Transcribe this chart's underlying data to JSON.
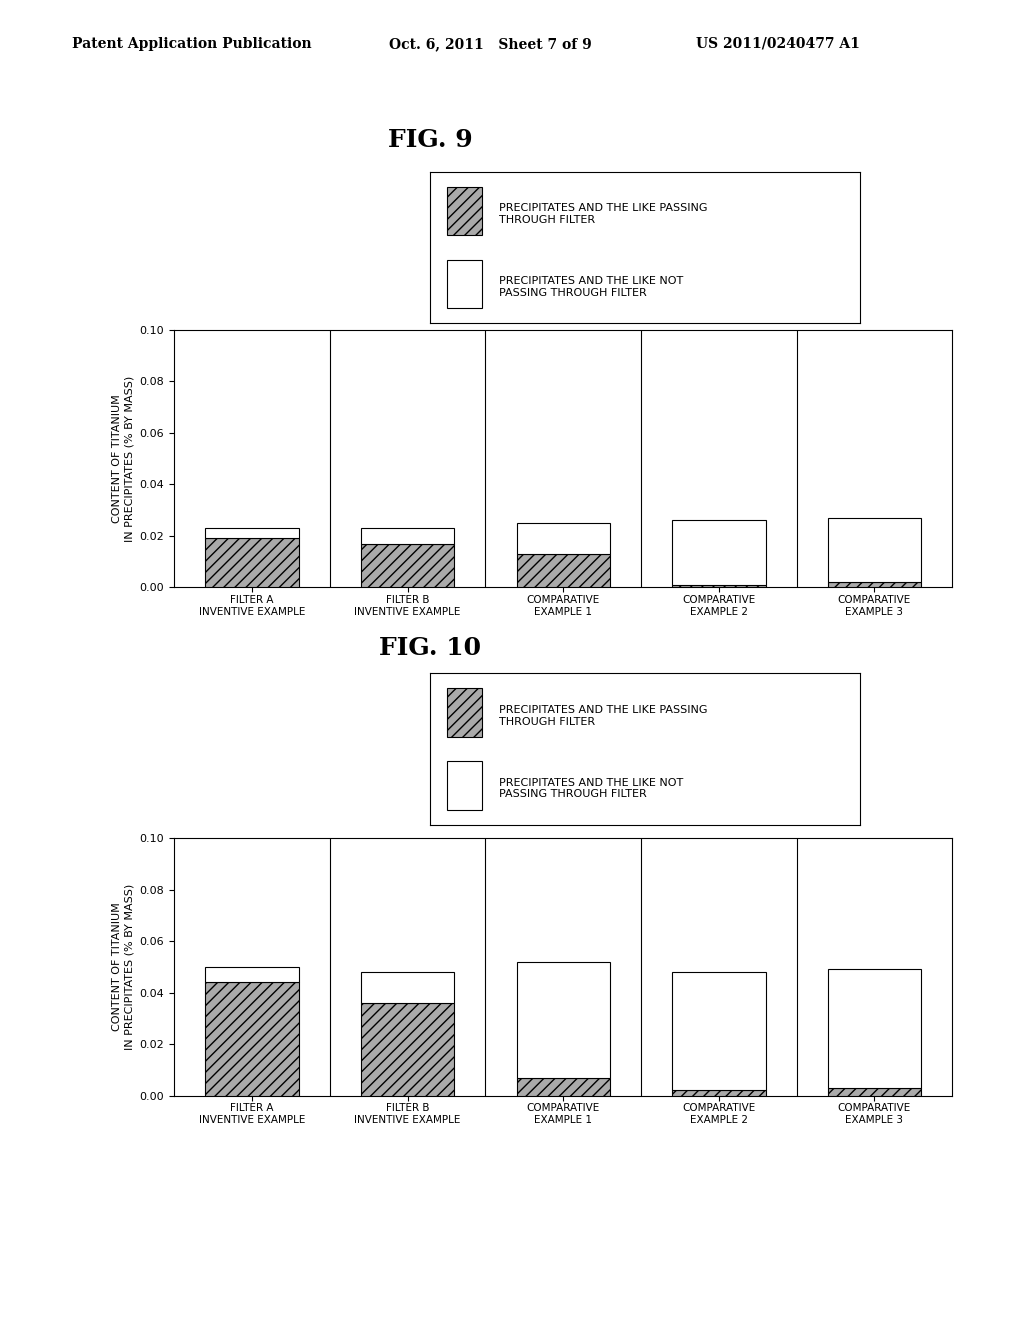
{
  "header_left": "Patent Application Publication",
  "header_mid": "Oct. 6, 2011   Sheet 7 of 9",
  "header_right": "US 2011/0240477 A1",
  "fig9_title": "FIG. 9",
  "fig10_title": "FIG. 10",
  "categories_line1": [
    "FILTER A",
    "FILTER B",
    "COMPARATIVE",
    "COMPARATIVE",
    "COMPARATIVE"
  ],
  "categories_line2": [
    "INVENTIVE EXAMPLE",
    "INVENTIVE EXAMPLE",
    "EXAMPLE 1",
    "EXAMPLE 2",
    "EXAMPLE 3"
  ],
  "fig9_passing": [
    0.019,
    0.017,
    0.013,
    0.001,
    0.002
  ],
  "fig9_not_passing": [
    0.004,
    0.006,
    0.012,
    0.025,
    0.025
  ],
  "fig10_passing": [
    0.044,
    0.036,
    0.007,
    0.002,
    0.003
  ],
  "fig10_not_passing": [
    0.006,
    0.012,
    0.045,
    0.046,
    0.046
  ],
  "ylabel": "CONTENT OF TITANIUM\nIN PRECIPITATES (% BY MASS)",
  "ylim": [
    0.0,
    0.1
  ],
  "yticks": [
    0.0,
    0.02,
    0.04,
    0.06,
    0.08,
    0.1
  ],
  "legend_label1": "PRECIPITATES AND THE LIKE PASSING\nTHROUGH FILTER",
  "legend_label2": "PRECIPITATES AND THE LIKE NOT\nPASSING THROUGH FILTER",
  "color_passing": "#aaaaaa",
  "color_not_passing": "#ffffff",
  "bar_width": 0.6,
  "background_color": "#ffffff",
  "text_color": "#000000"
}
